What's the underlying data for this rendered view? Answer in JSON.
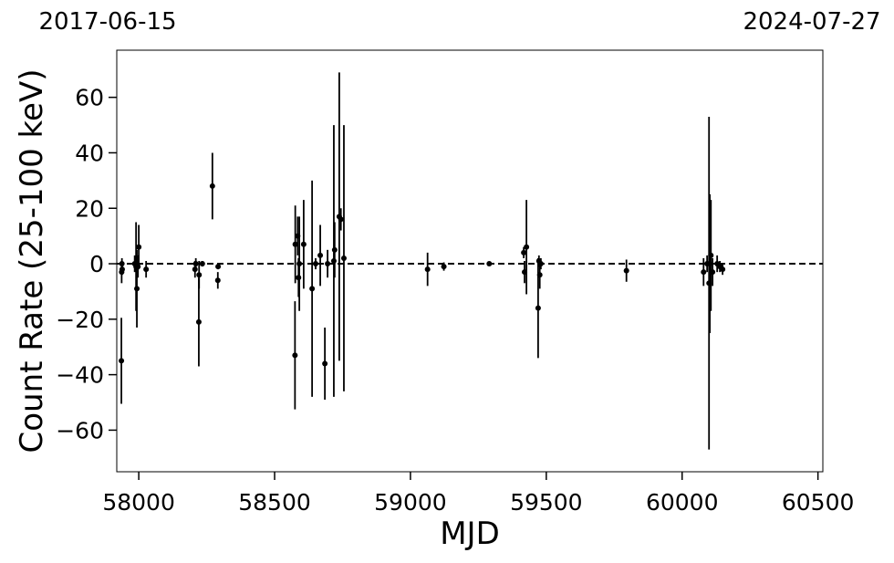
{
  "chart_data": {
    "type": "scatter",
    "top_labels": [
      "2017-06-15",
      "2024-07-27"
    ],
    "x_label": "MJD",
    "y_label": "Count Rate (25-100 keV)",
    "xlim": [
      57919,
      60518
    ],
    "ylim": [
      -75,
      77
    ],
    "xticks": [
      58000,
      58500,
      59000,
      59500,
      60000,
      60500
    ],
    "yticks": [
      {
        "value": -60,
        "label": "−60"
      },
      {
        "value": -40,
        "label": "−40"
      },
      {
        "value": -20,
        "label": "−20"
      },
      0,
      20,
      40,
      60
    ],
    "reference_line": 0,
    "series": [
      {
        "color": "#000000",
        "x": [
          57936,
          57937,
          57938,
          57939,
          57985,
          57990,
          57993,
          57997,
          58000,
          58027,
          58207,
          58210,
          58221,
          58222,
          58234,
          58271,
          58291,
          58292,
          58575,
          58576,
          58585,
          58588,
          58591,
          58607,
          58638,
          58651,
          58668,
          58685,
          58695,
          58718,
          58721,
          58738,
          58744,
          58755,
          59063,
          59123,
          59290,
          59417,
          59420,
          59427,
          59470,
          59473,
          59476,
          59480,
          59795,
          60079,
          60092,
          60099,
          60102,
          60106,
          60112,
          60129,
          60139,
          60149
        ],
        "values": [
          -35,
          -3,
          0,
          -2,
          0,
          -1,
          -9,
          -1,
          6,
          -2,
          -2,
          0,
          -21,
          -4,
          0,
          28,
          -6,
          -1,
          -33,
          7,
          10,
          -5,
          0,
          7,
          -9,
          0,
          3,
          -36,
          0,
          1,
          5,
          17,
          16,
          2,
          -2,
          -1,
          0,
          4,
          -3,
          6,
          -16,
          1,
          -4,
          0,
          -2.5,
          -3,
          0,
          -7,
          0,
          3,
          -3,
          0,
          -1,
          -2
        ],
        "errors": [
          15.5,
          4,
          2,
          2,
          3,
          16,
          14,
          4,
          8,
          3,
          3,
          2,
          16,
          5,
          1,
          12,
          3,
          1,
          19.5,
          14,
          7,
          7,
          17,
          16,
          39,
          2,
          11,
          13,
          5,
          49,
          10,
          52,
          4,
          48,
          6,
          1.5,
          0.5,
          2,
          4,
          17,
          18,
          2,
          5,
          2,
          4,
          5,
          3,
          60,
          25,
          20,
          5,
          3,
          2,
          2
        ]
      }
    ]
  }
}
